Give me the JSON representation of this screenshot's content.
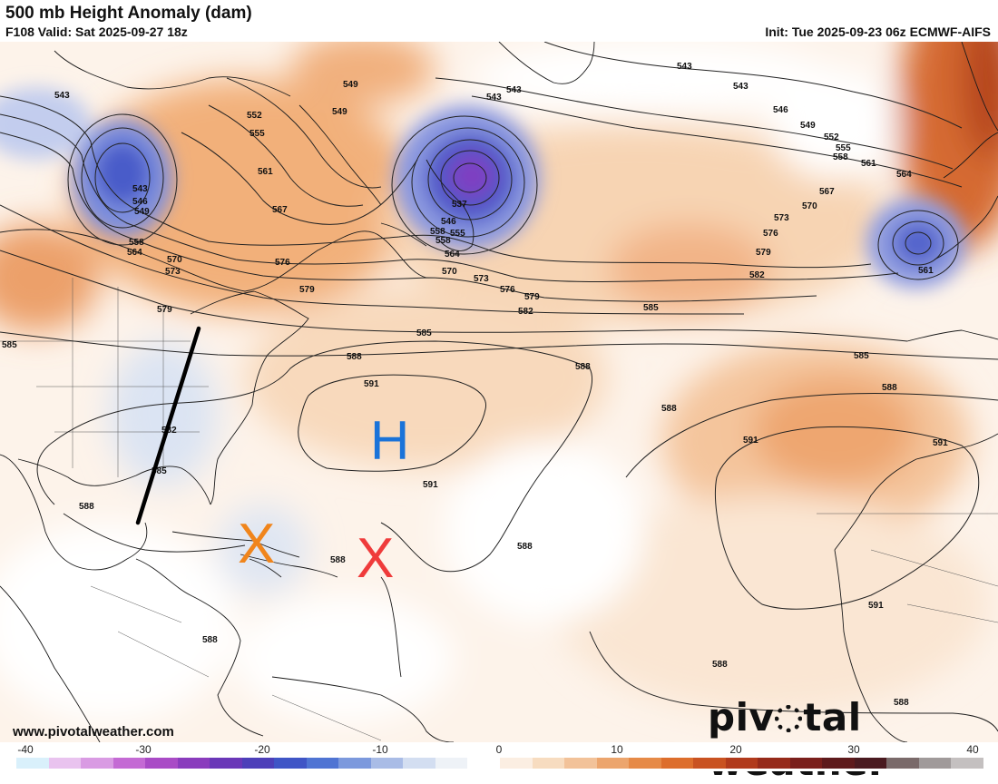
{
  "header": {
    "title": "500 mb Height Anomaly (dam)",
    "subtitle": "F108 Valid: Sat 2025-09-27 18z",
    "init": "Init: Tue 2025-09-23 06z ECMWF-AIFS"
  },
  "contour_labels": [
    "543",
    "546",
    "549",
    "552",
    "555",
    "558",
    "561",
    "564",
    "567",
    "570",
    "573",
    "576",
    "579",
    "582",
    "585",
    "588",
    "591",
    "537"
  ],
  "annotations": {
    "high_symbol": "H",
    "x_orange": "X",
    "x_red": "X",
    "colors": {
      "high": "#1a73d9",
      "x_orange": "#f0851c",
      "x_red": "#ef3b3b",
      "trough_line": "#000000"
    }
  },
  "colorbar": {
    "ticks": [
      "-40",
      "-30",
      "-20",
      "-10",
      "0",
      "10",
      "20",
      "30",
      "40"
    ],
    "min": -40,
    "max": 40,
    "colors": [
      "#d9f0fb",
      "#e9c3ef",
      "#d99be3",
      "#c46ad4",
      "#a94bc6",
      "#8a3cbd",
      "#6a37b8",
      "#4d3fb9",
      "#3f55c6",
      "#4f74d3",
      "#7c99dd",
      "#a9bce6",
      "#d3def1",
      "#eef2f7",
      "#ffffff",
      "#fbeee2",
      "#f7dcc0",
      "#f2c299",
      "#eca56d",
      "#e68a47",
      "#dd6e2c",
      "#c95221",
      "#b13a1c",
      "#962a1a",
      "#7a1f1c",
      "#5e1a1c",
      "#4a1a20",
      "#7a6a6a",
      "#a09a9a",
      "#c4c0c0"
    ]
  },
  "footer": {
    "url": "www.pivotalweather.com",
    "logo_left": "piv",
    "logo_right": "tal weather"
  }
}
